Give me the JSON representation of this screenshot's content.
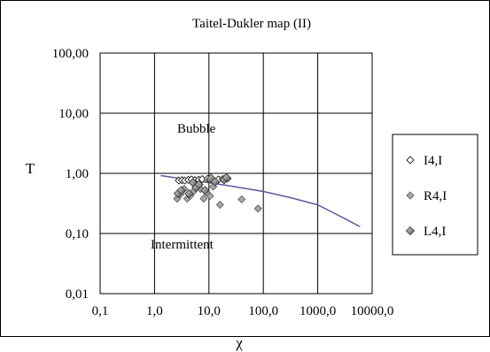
{
  "chart_data": {
    "type": "scatter",
    "title": "Taitel-Dukler map (II)",
    "xlabel": "χ",
    "ylabel": "T",
    "x_scale": "log",
    "y_scale": "log",
    "xlim": [
      0.1,
      10000
    ],
    "ylim": [
      0.01,
      100
    ],
    "x_tick_labels": [
      "0,1",
      "1,0",
      "10,0",
      "100,0",
      "1000,0",
      "10000,0"
    ],
    "y_tick_labels": [
      "0,01",
      "0,10",
      "1,00",
      "10,00",
      "100,00"
    ],
    "grid": true,
    "legend_position": "right",
    "annotations": [
      {
        "text": "Bubble",
        "x": 10,
        "y": 3.2
      },
      {
        "text": "Intermittent",
        "x": 8,
        "y": 0.07
      }
    ],
    "boundary_line": {
      "color": "#5b5b9e",
      "x": [
        1.3,
        3,
        10,
        30,
        100,
        300,
        1000,
        3000,
        6000
      ],
      "y": [
        0.92,
        0.82,
        0.7,
        0.6,
        0.5,
        0.4,
        0.3,
        0.18,
        0.13
      ]
    },
    "series": [
      {
        "name": "I4,I",
        "marker": "diamond-open",
        "x": [
          2.8,
          3.2,
          3.6,
          4.2,
          4.8,
          5.5,
          6.5,
          7.5,
          9.5,
          10.5,
          12,
          15,
          18,
          20,
          22
        ],
        "y": [
          0.76,
          0.77,
          0.76,
          0.78,
          0.79,
          0.77,
          0.78,
          0.8,
          0.81,
          0.79,
          0.77,
          0.79,
          0.8,
          0.81,
          0.82
        ]
      },
      {
        "name": "R4,I",
        "marker": "diamond-gray",
        "x": [
          2.6,
          3,
          3.5,
          4,
          4.5,
          5.2,
          6,
          7,
          8,
          9,
          10.5,
          12,
          16,
          40,
          80
        ],
        "y": [
          0.38,
          0.45,
          0.55,
          0.38,
          0.42,
          0.5,
          0.6,
          0.55,
          0.38,
          0.48,
          0.42,
          0.6,
          0.3,
          0.37,
          0.26
        ]
      },
      {
        "name": "L4,I",
        "marker": "diamond-dark",
        "x": [
          2.7,
          3.1,
          4.3,
          5.1,
          5.8,
          6.6,
          8.5,
          11,
          13,
          19,
          21
        ],
        "y": [
          0.46,
          0.52,
          0.46,
          0.7,
          0.58,
          0.65,
          0.52,
          0.83,
          0.72,
          0.78,
          0.85
        ]
      }
    ]
  }
}
